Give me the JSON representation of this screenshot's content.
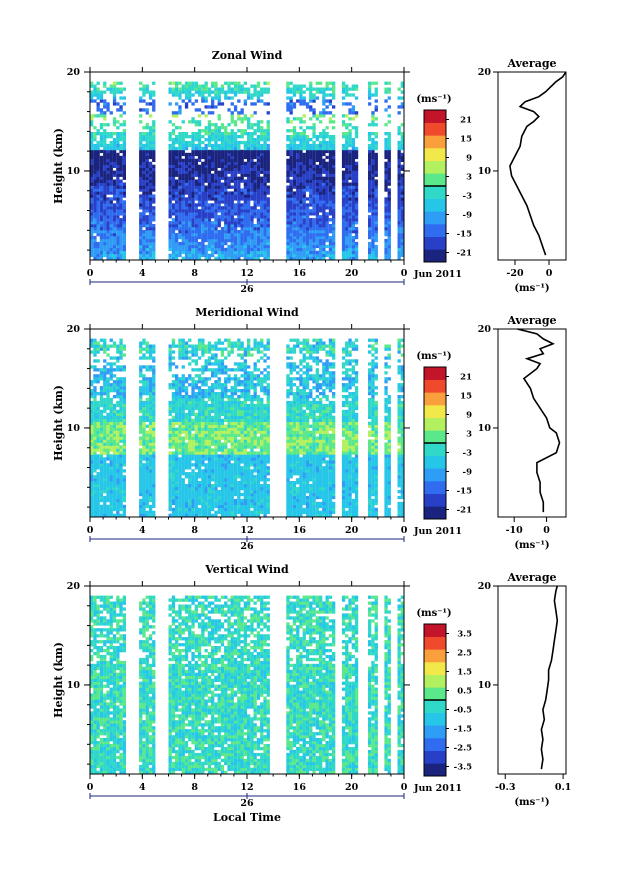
{
  "page": {
    "x_axis_label": "Local Time",
    "date_label": "Jun 2011",
    "day_label": "26",
    "average_title": "Average",
    "height_label": "Height (km)",
    "unit_label": "(ms⁻¹)"
  },
  "colors": {
    "scale": [
      "#1a237e",
      "#2840c8",
      "#2f6cf0",
      "#2f9cf5",
      "#26c6e8",
      "#30d8c8",
      "#5be88a",
      "#b2f060",
      "#f3e84a",
      "#f9a03c",
      "#ef4a2c",
      "#c3142a"
    ]
  },
  "chart_data": [
    {
      "type": "heatmap",
      "title": "Zonal Wind",
      "ylabel": "Height (km)",
      "xlabel": "",
      "x_range": [
        0,
        24
      ],
      "y_range": [
        1,
        20
      ],
      "x_ticks": [
        "0",
        "4",
        "8",
        "12",
        "16",
        "20",
        "0"
      ],
      "y_ticks": [
        "20",
        "10"
      ],
      "colorbar": {
        "unit": "(ms⁻¹)",
        "ticks": [
          "21",
          "15",
          "9",
          "3",
          "-3",
          "-9",
          "-15",
          "-21"
        ],
        "range": [
          -24,
          24
        ]
      },
      "average": {
        "title": "Average",
        "x_ticks": [
          "-20",
          "0"
        ],
        "x_range": [
          -30,
          10
        ],
        "profile": [
          [
            1.5,
            -2
          ],
          [
            2.5,
            -4
          ],
          [
            3.5,
            -6
          ],
          [
            4.5,
            -9
          ],
          [
            5.5,
            -11
          ],
          [
            6.5,
            -13
          ],
          [
            7.5,
            -16
          ],
          [
            8.5,
            -19
          ],
          [
            9.5,
            -22
          ],
          [
            10.5,
            -23
          ],
          [
            11.5,
            -20
          ],
          [
            12.5,
            -17
          ],
          [
            13.5,
            -16
          ],
          [
            14.5,
            -13
          ],
          [
            15.0,
            -9
          ],
          [
            15.5,
            -6
          ],
          [
            16.0,
            -9
          ],
          [
            16.5,
            -17
          ],
          [
            17.0,
            -14
          ],
          [
            17.5,
            -6
          ],
          [
            18.0,
            -2
          ],
          [
            18.5,
            1
          ],
          [
            19.0,
            4
          ],
          [
            19.5,
            8
          ],
          [
            20.0,
            10
          ]
        ]
      }
    },
    {
      "type": "heatmap",
      "title": "Meridional Wind",
      "ylabel": "Height (km)",
      "xlabel": "",
      "x_range": [
        0,
        24
      ],
      "y_range": [
        1,
        20
      ],
      "x_ticks": [
        "0",
        "4",
        "8",
        "12",
        "16",
        "20",
        "0"
      ],
      "y_ticks": [
        "20",
        "10"
      ],
      "colorbar": {
        "unit": "(ms⁻¹)",
        "ticks": [
          "21",
          "15",
          "9",
          "3",
          "-3",
          "-9",
          "-15",
          "-21"
        ],
        "range": [
          -24,
          24
        ]
      },
      "average": {
        "title": "Average",
        "x_ticks": [
          "-10",
          "0"
        ],
        "x_range": [
          -15,
          6
        ],
        "profile": [
          [
            1.5,
            -1
          ],
          [
            2.5,
            -1
          ],
          [
            3.5,
            -2
          ],
          [
            4.5,
            -2
          ],
          [
            5.5,
            -3
          ],
          [
            6.5,
            -3
          ],
          [
            7.5,
            3
          ],
          [
            8.5,
            4
          ],
          [
            9.5,
            3
          ],
          [
            10.0,
            1
          ],
          [
            11.0,
            0
          ],
          [
            12.0,
            -2
          ],
          [
            13.0,
            -4
          ],
          [
            14.0,
            -5
          ],
          [
            15.0,
            -7
          ],
          [
            16.0,
            -3
          ],
          [
            16.5,
            -2
          ],
          [
            17.0,
            -6
          ],
          [
            17.5,
            -1
          ],
          [
            18.0,
            -2
          ],
          [
            18.5,
            2
          ],
          [
            19.0,
            -1
          ],
          [
            19.5,
            -3
          ],
          [
            20.0,
            -9
          ]
        ]
      }
    },
    {
      "type": "heatmap",
      "title": "Vertical Wind",
      "ylabel": "Height (km)",
      "xlabel": "Local Time",
      "x_range": [
        0,
        24
      ],
      "y_range": [
        1,
        20
      ],
      "x_ticks": [
        "0",
        "4",
        "8",
        "12",
        "16",
        "20",
        "0"
      ],
      "y_ticks": [
        "20",
        "10"
      ],
      "colorbar": {
        "unit": "(ms⁻¹)",
        "ticks": [
          "3.5",
          "2.5",
          "1.5",
          "0.5",
          "-0.5",
          "-1.5",
          "-2.5",
          "-3.5"
        ],
        "range": [
          -4,
          4
        ]
      },
      "average": {
        "title": "Average",
        "x_ticks": [
          "-0.3",
          "0.1"
        ],
        "x_range": [
          -0.35,
          0.12
        ],
        "profile": [
          [
            1.5,
            -0.05
          ],
          [
            2.5,
            -0.04
          ],
          [
            3.5,
            -0.05
          ],
          [
            4.5,
            -0.04
          ],
          [
            5.5,
            -0.05
          ],
          [
            6.5,
            -0.03
          ],
          [
            7.5,
            -0.04
          ],
          [
            8.5,
            -0.02
          ],
          [
            9.5,
            -0.01
          ],
          [
            10.5,
            0.0
          ],
          [
            11.5,
            0.0
          ],
          [
            12.5,
            0.02
          ],
          [
            13.5,
            0.03
          ],
          [
            14.5,
            0.04
          ],
          [
            15.5,
            0.05
          ],
          [
            16.5,
            0.06
          ],
          [
            17.5,
            0.05
          ],
          [
            18.5,
            0.04
          ],
          [
            19.5,
            0.05
          ],
          [
            20.0,
            0.06
          ]
        ]
      }
    }
  ]
}
